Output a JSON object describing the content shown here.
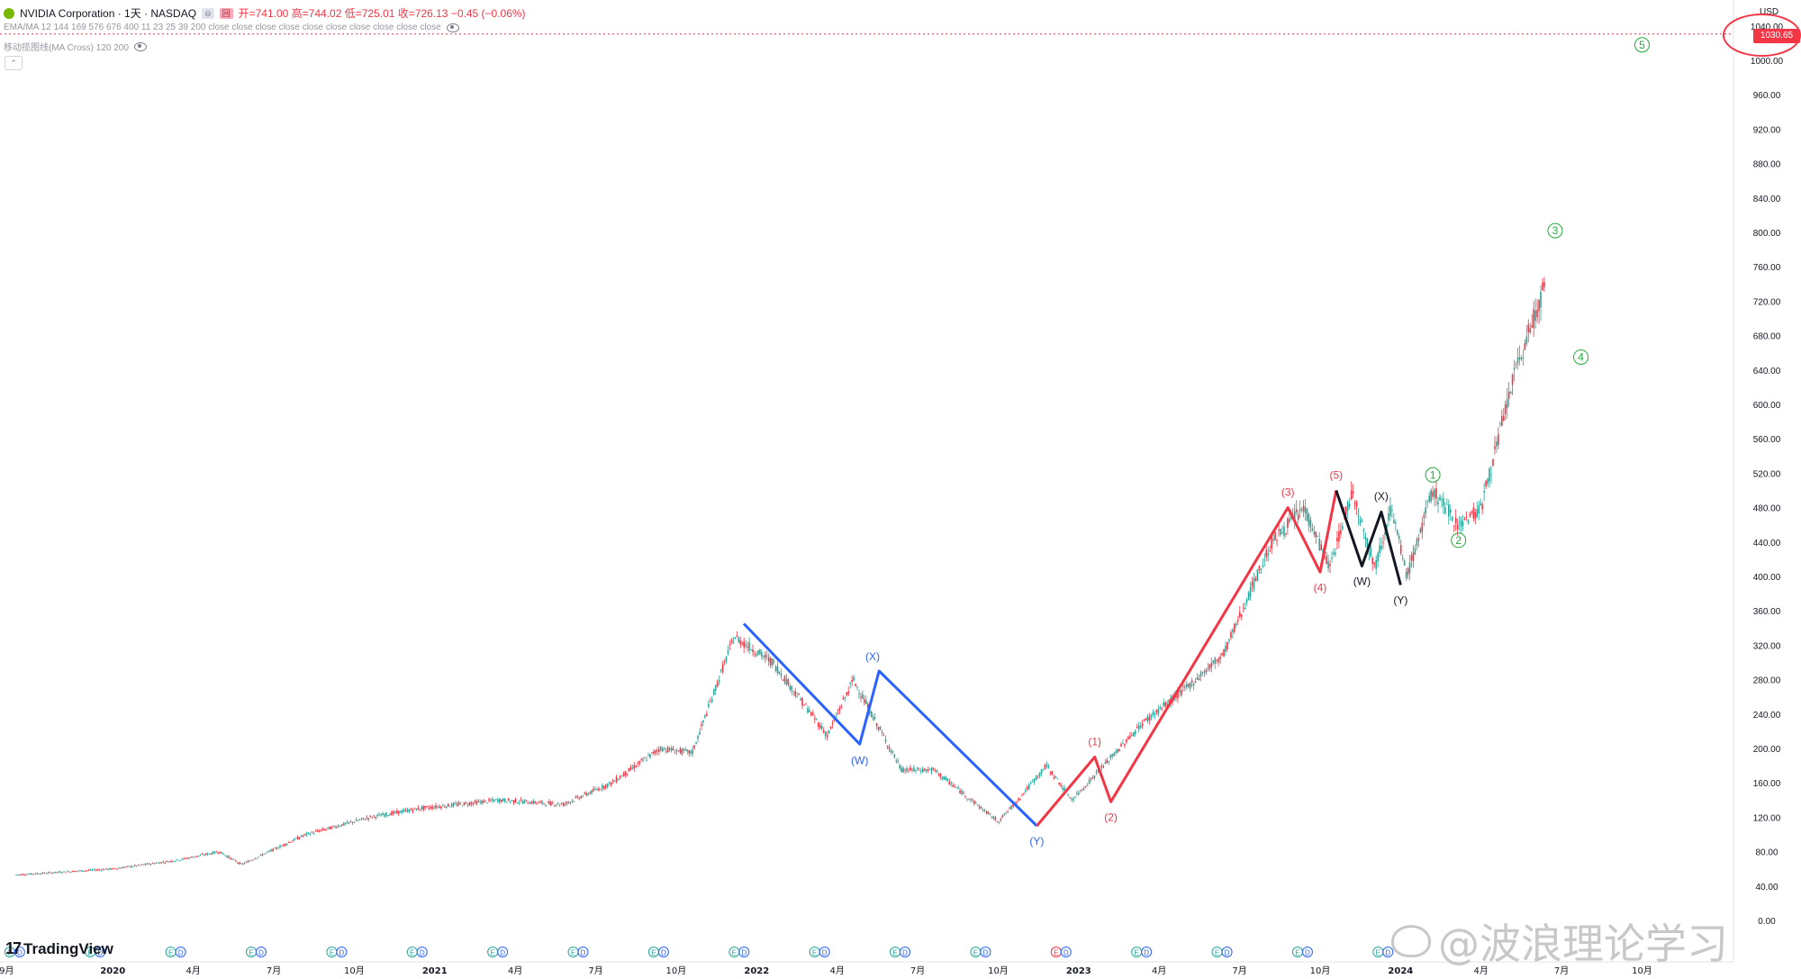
{
  "header": {
    "symbol_title": "NVIDIA Corporation · 1天 · NASDAQ",
    "ohlc": "开=741.00  高=744.02  低=725.01  收=726.13  −0.45 (−0.06%)",
    "indicator1": "EMA/MA 12 144 169 576 676 400 11 23 25 39 200 close close close close close close close close close close",
    "indicator2": "移动揽图线(MA Cross) 120 200",
    "collapse_label": "⌃",
    "btn_a": "⊖",
    "btn_b": "回"
  },
  "brand": {
    "logo_text": "TradingView",
    "mark": "17",
    "watermark": "@波浪理论学习"
  },
  "price_axis": {
    "currency": "USD",
    "current_price": "1030.65",
    "ticks": [
      "1040.00",
      "1000.00",
      "960.00",
      "920.00",
      "880.00",
      "840.00",
      "800.00",
      "760.00",
      "720.00",
      "680.00",
      "640.00",
      "600.00",
      "560.00",
      "520.00",
      "480.00",
      "440.00",
      "400.00",
      "360.00",
      "320.00",
      "280.00",
      "240.00",
      "200.00",
      "160.00",
      "120.00",
      "80.00",
      "40.00",
      "0.00"
    ]
  },
  "colors": {
    "up": "#26a69a",
    "down": "#f23645",
    "blue_wave": "#2962ff",
    "red_wave": "#f23645",
    "black_wave": "#131722",
    "green_label": "#22ab3a"
  },
  "chart_data": {
    "type": "candlestick",
    "symbol": "NVDA",
    "timeframe": "1天",
    "ylim": [
      0,
      1060
    ],
    "x_tick_labels": [
      "9月",
      "2020",
      "4月",
      "7月",
      "10月",
      "2021",
      "4月",
      "7月",
      "10月",
      "2022",
      "4月",
      "7月",
      "10月",
      "2023",
      "4月",
      "7月",
      "10月",
      "2024",
      "4月",
      "7月",
      "10月"
    ],
    "price_path": [
      [
        2019.7,
        53
      ],
      [
        2020.0,
        60
      ],
      [
        2020.2,
        70
      ],
      [
        2020.33,
        80
      ],
      [
        2020.4,
        65
      ],
      [
        2020.6,
        100
      ],
      [
        2020.8,
        120
      ],
      [
        2020.95,
        130
      ],
      [
        2021.2,
        140
      ],
      [
        2021.4,
        135
      ],
      [
        2021.55,
        160
      ],
      [
        2021.7,
        200
      ],
      [
        2021.8,
        195
      ],
      [
        2021.93,
        330
      ],
      [
        2022.05,
        300
      ],
      [
        2022.22,
        215
      ],
      [
        2022.3,
        280
      ],
      [
        2022.45,
        175
      ],
      [
        2022.55,
        175
      ],
      [
        2022.75,
        115
      ],
      [
        2022.8,
        135
      ],
      [
        2022.9,
        180
      ],
      [
        2022.98,
        140
      ],
      [
        2023.2,
        230
      ],
      [
        2023.35,
        275
      ],
      [
        2023.45,
        310
      ],
      [
        2023.6,
        440
      ],
      [
        2023.7,
        480
      ],
      [
        2023.78,
        410
      ],
      [
        2023.85,
        500
      ],
      [
        2023.92,
        410
      ],
      [
        2023.97,
        480
      ],
      [
        2024.02,
        400
      ],
      [
        2024.1,
        500
      ],
      [
        2024.18,
        460
      ],
      [
        2024.25,
        480
      ],
      [
        2024.35,
        630
      ],
      [
        2024.45,
        740
      ]
    ],
    "wave_blue": [
      [
        2021.96,
        345
      ],
      [
        2022.32,
        205
      ],
      [
        2022.38,
        290
      ],
      [
        2022.87,
        110
      ]
    ],
    "wave_red": [
      [
        2022.87,
        110
      ],
      [
        2023.05,
        190
      ],
      [
        2023.1,
        138
      ],
      [
        2023.65,
        480
      ],
      [
        2023.75,
        405
      ],
      [
        2023.8,
        500
      ]
    ],
    "wave_black": [
      [
        2023.8,
        500
      ],
      [
        2023.88,
        412
      ],
      [
        2023.94,
        475
      ],
      [
        2024.0,
        390
      ]
    ],
    "labels": [
      {
        "text": "(X)",
        "x": 2022.36,
        "y": 307,
        "color": "blue"
      },
      {
        "text": "(W)",
        "x": 2022.32,
        "y": 186,
        "color": "blue"
      },
      {
        "text": "(Y)",
        "x": 2022.87,
        "y": 92,
        "color": "blue"
      },
      {
        "text": "(1)",
        "x": 2023.05,
        "y": 208,
        "color": "red"
      },
      {
        "text": "(2)",
        "x": 2023.1,
        "y": 120,
        "color": "red"
      },
      {
        "text": "(3)",
        "x": 2023.65,
        "y": 498,
        "color": "red"
      },
      {
        "text": "(4)",
        "x": 2023.75,
        "y": 387,
        "color": "red"
      },
      {
        "text": "(5)",
        "x": 2023.8,
        "y": 518,
        "color": "red"
      },
      {
        "text": "(X)",
        "x": 2023.94,
        "y": 493,
        "color": "black"
      },
      {
        "text": "(W)",
        "x": 2023.88,
        "y": 394,
        "color": "black"
      },
      {
        "text": "(Y)",
        "x": 2024.0,
        "y": 372,
        "color": "black"
      },
      {
        "text": "1",
        "x": 2024.1,
        "y": 518,
        "color": "green",
        "circle": true
      },
      {
        "text": "2",
        "x": 2024.18,
        "y": 442,
        "color": "green",
        "circle": true
      },
      {
        "text": "3",
        "x": 2024.48,
        "y": 802,
        "color": "green",
        "circle": true
      },
      {
        "text": "4",
        "x": 2024.56,
        "y": 655,
        "color": "green",
        "circle": true
      },
      {
        "text": "5",
        "x": 2024.75,
        "y": 1018,
        "color": "green",
        "circle": true
      }
    ],
    "target_line": 1030.65,
    "earnings_markers": [
      "E",
      "D"
    ]
  }
}
